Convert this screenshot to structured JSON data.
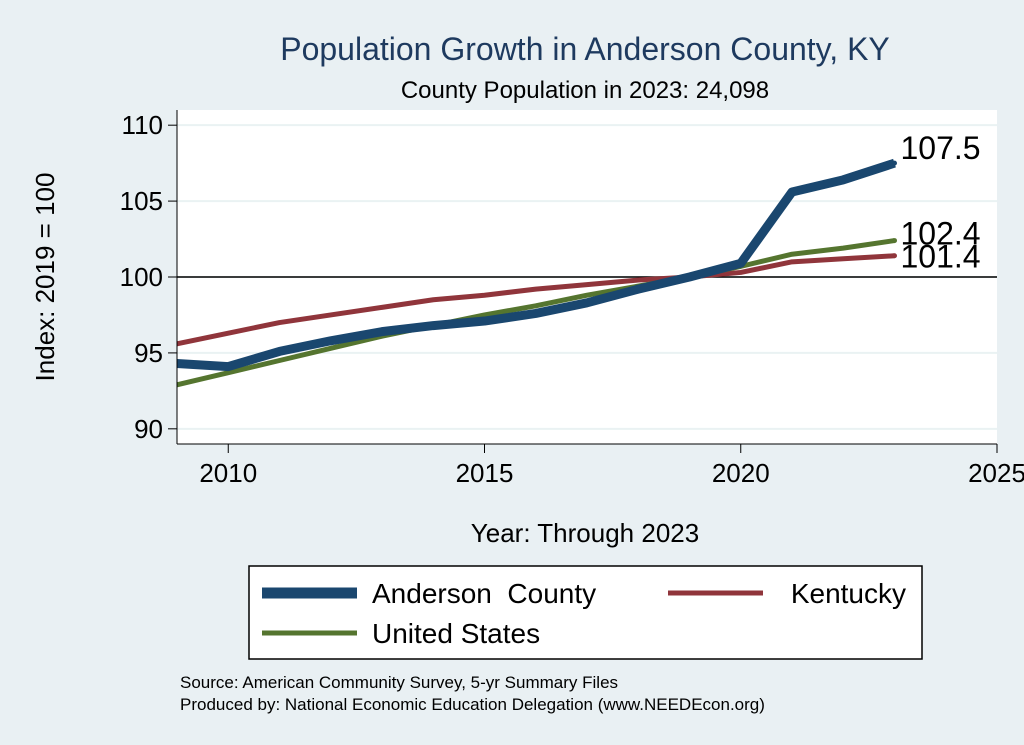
{
  "chart_data": {
    "type": "line",
    "title": "Population Growth in Anderson County, KY",
    "subtitle": "County Population in 2023: 24,098",
    "xlabel": "Year: Through 2023",
    "ylabel": "Index: 2019 = 100",
    "xlim": [
      2009,
      2025
    ],
    "ylim": [
      89,
      111
    ],
    "x_ticks": [
      2010,
      2015,
      2020,
      2025
    ],
    "y_ticks": [
      90,
      95,
      100,
      105,
      110
    ],
    "reference_line": 100,
    "grid": true,
    "x": [
      2009,
      2010,
      2011,
      2012,
      2013,
      2014,
      2015,
      2016,
      2017,
      2018,
      2019,
      2020,
      2021,
      2022,
      2023
    ],
    "series": [
      {
        "name": "Anderson  County",
        "color": "#1a476f",
        "values": [
          94.3,
          94.1,
          95.1,
          95.8,
          96.4,
          96.8,
          97.1,
          97.6,
          98.3,
          99.2,
          100.0,
          100.9,
          105.6,
          106.4,
          107.5
        ],
        "end_label": "107.5"
      },
      {
        "name": "Kentucky",
        "color": "#90353b",
        "values": [
          95.6,
          96.3,
          97.0,
          97.5,
          98.0,
          98.5,
          98.8,
          99.2,
          99.5,
          99.8,
          100.0,
          100.3,
          101.0,
          101.2,
          101.4
        ],
        "end_label": "101.4"
      },
      {
        "name": "United States",
        "color": "#55752f",
        "values": [
          92.9,
          93.7,
          94.5,
          95.3,
          96.1,
          96.8,
          97.5,
          98.1,
          98.8,
          99.4,
          100.0,
          100.7,
          101.5,
          101.9,
          102.4
        ],
        "end_label": "102.4"
      }
    ],
    "legend_position": "bottom"
  },
  "footer": {
    "source": "Source: American Community Survey, 5-yr Summary Files",
    "producer": "Produced by: National Economic Education Delegation (www.NEEDEcon.org)"
  }
}
